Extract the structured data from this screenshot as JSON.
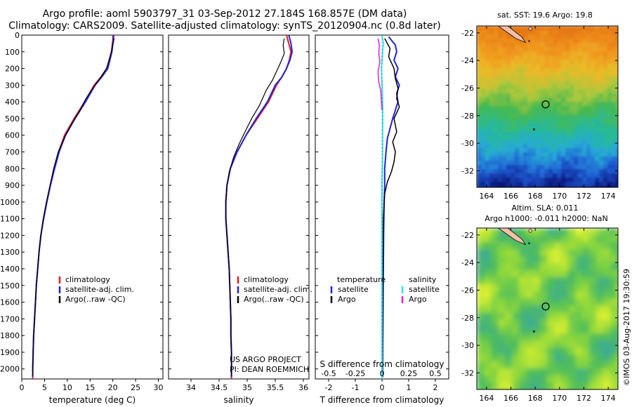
{
  "header": {
    "title_line1": "Argo profile: aoml 5903797_31 03-Sep-2012 27.184S 168.857E (DM data)",
    "title_line2": "Climatology: CARS2009. Satellite-adjusted climatology: synTS_20120904.nc (0.8d later)"
  },
  "stamp": "©IMOS 03-Aug-2017 19:30:59",
  "credits": {
    "line1": "US ARGO PROJECT",
    "line2": "PI: DEAN ROEMMICH"
  },
  "colors": {
    "climatology": "#e8191b",
    "satellite_adj": "#1f23d6",
    "argo": "#000000",
    "sal_satellite": "#2ee6e6",
    "sal_argo": "#e01ee0",
    "land": "#f4bfa6"
  },
  "chart_data": [
    {
      "type": "line",
      "id": "temperature",
      "xlabel": "temperature (deg C)",
      "xlim": [
        0,
        31
      ],
      "xticks": [
        0,
        5,
        10,
        15,
        20,
        25,
        30
      ],
      "ylim": [
        2060,
        0
      ],
      "yticks": [
        0,
        100,
        200,
        300,
        400,
        500,
        600,
        700,
        800,
        900,
        1000,
        1100,
        1200,
        1300,
        1400,
        1500,
        1600,
        1700,
        1800,
        1900,
        2000
      ],
      "legend": [
        "climatology",
        "satellite-adj. clim.",
        "Argo(..raw -QC)"
      ],
      "series": [
        {
          "name": "climatology",
          "color": "#e8191b",
          "width": 2,
          "points": [
            [
              20,
              0
            ],
            [
              20,
              30
            ],
            [
              19.7,
              100
            ],
            [
              18.7,
              200
            ],
            [
              17.4,
              250
            ],
            [
              15.9,
              300
            ],
            [
              13.8,
              400
            ],
            [
              11.5,
              500
            ],
            [
              9.4,
              600
            ],
            [
              8.1,
              700
            ],
            [
              7.1,
              800
            ],
            [
              6.3,
              900
            ],
            [
              5.5,
              1000
            ],
            [
              4.8,
              1100
            ],
            [
              4.2,
              1200
            ],
            [
              3.8,
              1300
            ],
            [
              3.5,
              1400
            ],
            [
              3.2,
              1500
            ],
            [
              3.0,
              1600
            ],
            [
              2.8,
              1700
            ],
            [
              2.6,
              1800
            ],
            [
              2.5,
              1900
            ],
            [
              2.4,
              2000
            ],
            [
              2.4,
              2060
            ]
          ]
        },
        {
          "name": "satellite-adj. clim.",
          "color": "#1f23d6",
          "width": 2,
          "points": [
            [
              20.2,
              0
            ],
            [
              20.1,
              30
            ],
            [
              19.8,
              100
            ],
            [
              18.9,
              200
            ],
            [
              17.6,
              250
            ],
            [
              16.1,
              300
            ],
            [
              14.0,
              400
            ],
            [
              11.7,
              500
            ],
            [
              9.6,
              600
            ],
            [
              8.2,
              700
            ],
            [
              7.2,
              800
            ],
            [
              6.3,
              900
            ],
            [
              5.5,
              1000
            ],
            [
              4.8,
              1100
            ],
            [
              4.2,
              1200
            ],
            [
              3.8,
              1300
            ],
            [
              3.5,
              1400
            ],
            [
              3.2,
              1500
            ],
            [
              3.0,
              1600
            ],
            [
              2.8,
              1700
            ],
            [
              2.6,
              1800
            ],
            [
              2.5,
              1900
            ],
            [
              2.4,
              2000
            ],
            [
              2.4,
              2050
            ]
          ]
        },
        {
          "name": "Argo(..raw -QC)",
          "color": "#000000",
          "width": 1.2,
          "points": [
            [
              20.3,
              20
            ],
            [
              20.0,
              60
            ],
            [
              19.4,
              130
            ],
            [
              18.6,
              200
            ],
            [
              17.2,
              260
            ],
            [
              15.6,
              320
            ],
            [
              14.1,
              380
            ],
            [
              12.6,
              460
            ],
            [
              10.8,
              540
            ],
            [
              9.3,
              620
            ],
            [
              8.0,
              700
            ],
            [
              7.0,
              800
            ],
            [
              6.2,
              900
            ],
            [
              5.4,
              1000
            ],
            [
              4.7,
              1100
            ],
            [
              4.2,
              1200
            ],
            [
              3.8,
              1300
            ],
            [
              3.5,
              1400
            ],
            [
              3.2,
              1500
            ],
            [
              3.0,
              1600
            ],
            [
              2.8,
              1700
            ],
            [
              2.6,
              1800
            ],
            [
              2.5,
              1900
            ],
            [
              2.4,
              2000
            ],
            [
              2.4,
              2040
            ]
          ]
        }
      ]
    },
    {
      "type": "line",
      "id": "salinity",
      "xlabel": "salinity",
      "xlim": [
        33.6,
        36.1
      ],
      "xticks": [
        34,
        34.5,
        35,
        35.5,
        36
      ],
      "ylim": [
        2060,
        0
      ],
      "legend": [
        "climatology",
        "satellite-adj. clim.",
        "Argo(..raw -QC)"
      ],
      "series": [
        {
          "name": "climatology",
          "color": "#e8191b",
          "width": 2,
          "points": [
            [
              35.7,
              0
            ],
            [
              35.74,
              50
            ],
            [
              35.78,
              100
            ],
            [
              35.75,
              150
            ],
            [
              35.7,
              200
            ],
            [
              35.62,
              250
            ],
            [
              35.52,
              300
            ],
            [
              35.38,
              400
            ],
            [
              35.18,
              500
            ],
            [
              34.98,
              600
            ],
            [
              34.82,
              700
            ],
            [
              34.7,
              800
            ],
            [
              34.64,
              900
            ],
            [
              34.62,
              1000
            ],
            [
              34.62,
              1100
            ],
            [
              34.64,
              1200
            ],
            [
              34.66,
              1300
            ],
            [
              34.68,
              1400
            ],
            [
              34.69,
              1500
            ],
            [
              34.7,
              1600
            ],
            [
              34.71,
              1700
            ],
            [
              34.71,
              1800
            ],
            [
              34.72,
              1900
            ],
            [
              34.72,
              2000
            ],
            [
              34.72,
              2060
            ]
          ]
        },
        {
          "name": "satellite-adj. clim.",
          "color": "#1f23d6",
          "width": 2,
          "points": [
            [
              35.74,
              0
            ],
            [
              35.78,
              50
            ],
            [
              35.8,
              100
            ],
            [
              35.76,
              150
            ],
            [
              35.7,
              200
            ],
            [
              35.62,
              250
            ],
            [
              35.5,
              300
            ],
            [
              35.36,
              400
            ],
            [
              35.16,
              500
            ],
            [
              34.98,
              600
            ],
            [
              34.82,
              700
            ],
            [
              34.7,
              800
            ],
            [
              34.64,
              900
            ],
            [
              34.62,
              1000
            ],
            [
              34.62,
              1100
            ],
            [
              34.64,
              1200
            ],
            [
              34.66,
              1300
            ],
            [
              34.68,
              1400
            ],
            [
              34.69,
              1500
            ],
            [
              34.7,
              1600
            ],
            [
              34.71,
              1700
            ],
            [
              34.71,
              1800
            ],
            [
              34.72,
              1900
            ],
            [
              34.72,
              2000
            ],
            [
              34.72,
              2050
            ]
          ]
        },
        {
          "name": "Argo(..raw -QC)",
          "color": "#000000",
          "width": 1.2,
          "points": [
            [
              35.66,
              20
            ],
            [
              35.64,
              60
            ],
            [
              35.66,
              110
            ],
            [
              35.6,
              160
            ],
            [
              35.52,
              220
            ],
            [
              35.45,
              270
            ],
            [
              35.34,
              330
            ],
            [
              35.22,
              420
            ],
            [
              35.08,
              500
            ],
            [
              34.96,
              580
            ],
            [
              34.86,
              650
            ],
            [
              34.76,
              730
            ],
            [
              34.68,
              820
            ],
            [
              34.64,
              900
            ],
            [
              34.62,
              1000
            ],
            [
              34.62,
              1100
            ],
            [
              34.64,
              1200
            ],
            [
              34.66,
              1300
            ],
            [
              34.68,
              1400
            ],
            [
              34.69,
              1500
            ],
            [
              34.7,
              1600
            ],
            [
              34.71,
              1700
            ],
            [
              34.71,
              1800
            ],
            [
              34.72,
              1900
            ],
            [
              34.72,
              2000
            ],
            [
              34.72,
              2040
            ]
          ]
        }
      ]
    },
    {
      "type": "line",
      "id": "difference",
      "xlabel": "T difference from climatology",
      "xlabel_top": "S difference from climatology",
      "xlim": [
        -2.5,
        2.5
      ],
      "xticks": [
        -2,
        -1,
        0,
        1,
        2
      ],
      "xticks_top": [
        -0.5,
        -0.25,
        0,
        0.25,
        0.5
      ],
      "ylim": [
        2060,
        0
      ],
      "legend_temperature_title": "temperature",
      "legend_salinity_title": "salinity",
      "series": [
        {
          "name": "satellite",
          "group": "temperature",
          "color": "#1f23d6",
          "width": 2,
          "points": [
            [
              0.25,
              10
            ],
            [
              0.5,
              60
            ],
            [
              0.55,
              100
            ],
            [
              0.45,
              150
            ],
            [
              0.6,
              200
            ],
            [
              0.5,
              250
            ],
            [
              0.65,
              300
            ],
            [
              0.55,
              350
            ],
            [
              0.6,
              400
            ],
            [
              0.5,
              450
            ],
            [
              0.4,
              500
            ],
            [
              0.3,
              560
            ],
            [
              0.2,
              620
            ],
            [
              0.15,
              700
            ],
            [
              0.1,
              800
            ],
            [
              0.1,
              900
            ],
            [
              0.08,
              1000
            ],
            [
              0.06,
              1200
            ],
            [
              0.05,
              1400
            ],
            [
              0.04,
              1600
            ],
            [
              0.03,
              1800
            ],
            [
              0.02,
              2000
            ],
            [
              0.02,
              2050
            ]
          ]
        },
        {
          "name": "Argo",
          "group": "temperature",
          "color": "#000000",
          "width": 1.5,
          "points": [
            [
              0.1,
              20
            ],
            [
              0.3,
              80
            ],
            [
              0.25,
              130
            ],
            [
              0.45,
              200
            ],
            [
              0.5,
              260
            ],
            [
              0.6,
              320
            ],
            [
              0.55,
              380
            ],
            [
              0.65,
              430
            ],
            [
              0.45,
              500
            ],
            [
              0.55,
              580
            ],
            [
              0.4,
              640
            ],
            [
              0.5,
              700
            ],
            [
              0.45,
              760
            ],
            [
              0.35,
              820
            ],
            [
              0.2,
              880
            ],
            [
              0.1,
              950
            ],
            [
              0.05,
              1100
            ],
            [
              0.04,
              1300
            ],
            [
              0.03,
              1500
            ],
            [
              0.02,
              1800
            ],
            [
              0.01,
              2000
            ],
            [
              0.01,
              2040
            ]
          ]
        },
        {
          "name": "satellite",
          "group": "salinity",
          "color": "#2ee6e6",
          "width": 2,
          "points": [
            [
              0.0,
              0
            ],
            [
              0.05,
              50
            ],
            [
              0.02,
              100
            ],
            [
              0.0,
              150
            ],
            [
              -0.02,
              200
            ],
            [
              0.0,
              300
            ],
            [
              0.02,
              400
            ],
            [
              0.03,
              500
            ],
            [
              0.02,
              600
            ],
            [
              0.02,
              700
            ],
            [
              0.01,
              800
            ],
            [
              0.0,
              900
            ],
            [
              0.0,
              1100
            ],
            [
              0.0,
              1300
            ],
            [
              0.0,
              1500
            ],
            [
              0.0,
              1700
            ],
            [
              0.0,
              1900
            ],
            [
              0.0,
              2060
            ]
          ]
        },
        {
          "name": "Argo",
          "group": "salinity",
          "color": "#e01ee0",
          "width": 1.5,
          "points": [
            [
              -0.15,
              20
            ],
            [
              -0.1,
              60
            ],
            [
              -0.12,
              110
            ],
            [
              -0.08,
              160
            ],
            [
              -0.15,
              220
            ],
            [
              -0.12,
              280
            ],
            [
              -0.05,
              330
            ],
            [
              -0.02,
              400
            ],
            [
              0.0,
              450
            ]
          ]
        }
      ]
    },
    {
      "type": "heatmap",
      "id": "sst-map",
      "title": "sat. SST: 19.6  Argo: 19.8",
      "xlim": [
        163.2,
        174.8
      ],
      "xticks": [
        164,
        166,
        168,
        170,
        172,
        174
      ],
      "ylim": [
        -33.2,
        -21.5
      ],
      "yticks": [
        -22,
        -24,
        -26,
        -28,
        -30,
        -32
      ],
      "argo_position": [
        168.857,
        -27.184
      ]
    },
    {
      "type": "heatmap",
      "id": "sla-map",
      "title_line1": "Altim. SLA: 0.011",
      "title_line2": "Argo h1000: -0.011  h2000: NaN",
      "xlim": [
        163.2,
        174.8
      ],
      "xticks": [
        164,
        166,
        168,
        170,
        172,
        174
      ],
      "ylim": [
        -33.2,
        -21.5
      ],
      "yticks": [
        -22,
        -24,
        -26,
        -28,
        -30,
        -32
      ],
      "argo_position": [
        168.857,
        -27.184
      ]
    }
  ]
}
